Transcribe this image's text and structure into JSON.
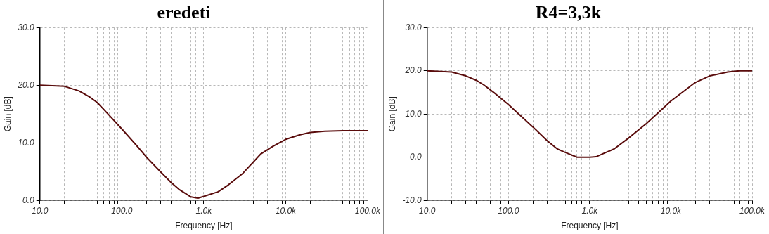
{
  "chart_data": [
    {
      "type": "line",
      "title": "eredeti",
      "xlabel": "Frequency [Hz]",
      "ylabel": "Gain [dB]",
      "log": "x",
      "grid": true,
      "line_style": "solid",
      "marker": "none",
      "legend": false,
      "xlim": [
        10,
        100000
      ],
      "ylim": [
        0,
        30
      ],
      "xticks": [
        {
          "value": 10,
          "label": "10.0"
        },
        {
          "value": 20,
          "label": null
        },
        {
          "value": 30,
          "label": null
        },
        {
          "value": 40,
          "label": null
        },
        {
          "value": 50,
          "label": null
        },
        {
          "value": 60,
          "label": null
        },
        {
          "value": 70,
          "label": null
        },
        {
          "value": 80,
          "label": null
        },
        {
          "value": 90,
          "label": null
        },
        {
          "value": 100,
          "label": "100.0"
        },
        {
          "value": 200,
          "label": null
        },
        {
          "value": 300,
          "label": null
        },
        {
          "value": 400,
          "label": null
        },
        {
          "value": 500,
          "label": null
        },
        {
          "value": 600,
          "label": null
        },
        {
          "value": 700,
          "label": null
        },
        {
          "value": 800,
          "label": null
        },
        {
          "value": 900,
          "label": null
        },
        {
          "value": 1000,
          "label": "1.0k"
        },
        {
          "value": 2000,
          "label": null
        },
        {
          "value": 3000,
          "label": null
        },
        {
          "value": 4000,
          "label": null
        },
        {
          "value": 5000,
          "label": null
        },
        {
          "value": 6000,
          "label": null
        },
        {
          "value": 7000,
          "label": null
        },
        {
          "value": 8000,
          "label": null
        },
        {
          "value": 9000,
          "label": null
        },
        {
          "value": 10000,
          "label": "10.0k"
        },
        {
          "value": 20000,
          "label": null
        },
        {
          "value": 30000,
          "label": null
        },
        {
          "value": 40000,
          "label": null
        },
        {
          "value": 50000,
          "label": null
        },
        {
          "value": 60000,
          "label": null
        },
        {
          "value": 70000,
          "label": null
        },
        {
          "value": 80000,
          "label": null
        },
        {
          "value": 90000,
          "label": null
        },
        {
          "value": 100000,
          "label": "100.0k"
        }
      ],
      "yticks": [
        {
          "value": 0,
          "label": "0.0"
        },
        {
          "value": 10,
          "label": "10.0"
        },
        {
          "value": 20,
          "label": "20.0"
        },
        {
          "value": 30,
          "label": "30.0"
        }
      ],
      "x": [
        10,
        20,
        30,
        40,
        50,
        70,
        100,
        150,
        200,
        300,
        400,
        500,
        700,
        850,
        1000,
        1500,
        2000,
        3000,
        5000,
        7000,
        10000,
        15000,
        20000,
        30000,
        50000,
        100000
      ],
      "series": [
        {
          "color": "#5a0c0c",
          "values": [
            20.0,
            19.8,
            19.0,
            18.0,
            17.0,
            14.8,
            12.4,
            9.6,
            7.5,
            4.9,
            3.1,
            1.9,
            0.6,
            0.4,
            0.7,
            1.5,
            2.7,
            4.7,
            8.1,
            9.4,
            10.6,
            11.4,
            11.8,
            12.0,
            12.1,
            12.1
          ]
        }
      ]
    },
    {
      "type": "line",
      "title": "R4=3,3k",
      "xlabel": "Frequency [Hz]",
      "ylabel": "Gain [dB]",
      "log": "x",
      "grid": true,
      "line_style": "solid",
      "marker": "none",
      "legend": false,
      "xlim": [
        10,
        100000
      ],
      "ylim": [
        -10,
        30
      ],
      "xticks": [
        {
          "value": 10,
          "label": "10.0"
        },
        {
          "value": 20,
          "label": null
        },
        {
          "value": 30,
          "label": null
        },
        {
          "value": 40,
          "label": null
        },
        {
          "value": 50,
          "label": null
        },
        {
          "value": 60,
          "label": null
        },
        {
          "value": 70,
          "label": null
        },
        {
          "value": 80,
          "label": null
        },
        {
          "value": 90,
          "label": null
        },
        {
          "value": 100,
          "label": "100.0"
        },
        {
          "value": 200,
          "label": null
        },
        {
          "value": 300,
          "label": null
        },
        {
          "value": 400,
          "label": null
        },
        {
          "value": 500,
          "label": null
        },
        {
          "value": 600,
          "label": null
        },
        {
          "value": 700,
          "label": null
        },
        {
          "value": 800,
          "label": null
        },
        {
          "value": 900,
          "label": null
        },
        {
          "value": 1000,
          "label": "1.0k"
        },
        {
          "value": 2000,
          "label": null
        },
        {
          "value": 3000,
          "label": null
        },
        {
          "value": 4000,
          "label": null
        },
        {
          "value": 5000,
          "label": null
        },
        {
          "value": 6000,
          "label": null
        },
        {
          "value": 7000,
          "label": null
        },
        {
          "value": 8000,
          "label": null
        },
        {
          "value": 9000,
          "label": null
        },
        {
          "value": 10000,
          "label": "10.0k"
        },
        {
          "value": 20000,
          "label": null
        },
        {
          "value": 30000,
          "label": null
        },
        {
          "value": 40000,
          "label": null
        },
        {
          "value": 50000,
          "label": null
        },
        {
          "value": 60000,
          "label": null
        },
        {
          "value": 70000,
          "label": null
        },
        {
          "value": 80000,
          "label": null
        },
        {
          "value": 90000,
          "label": null
        },
        {
          "value": 100000,
          "label": "100.0k"
        }
      ],
      "yticks": [
        {
          "value": -10,
          "label": "-10.0"
        },
        {
          "value": 0,
          "label": "0.0"
        },
        {
          "value": 10,
          "label": "10.0"
        },
        {
          "value": 20,
          "label": "20.0"
        },
        {
          "value": 30,
          "label": "30.0"
        }
      ],
      "x": [
        10,
        20,
        30,
        40,
        50,
        70,
        100,
        200,
        300,
        400,
        500,
        700,
        1000,
        1200,
        1500,
        2000,
        3000,
        5000,
        7000,
        10000,
        20000,
        30000,
        50000,
        70000,
        100000
      ],
      "series": [
        {
          "color": "#5a0c0c",
          "values": [
            20.0,
            19.7,
            18.8,
            17.8,
            16.7,
            14.6,
            12.2,
            7.0,
            3.8,
            1.9,
            1.1,
            0.0,
            0.0,
            0.1,
            0.9,
            1.9,
            4.4,
            7.8,
            10.3,
            13.0,
            17.3,
            18.8,
            19.7,
            20.0,
            20.0
          ]
        }
      ]
    }
  ]
}
